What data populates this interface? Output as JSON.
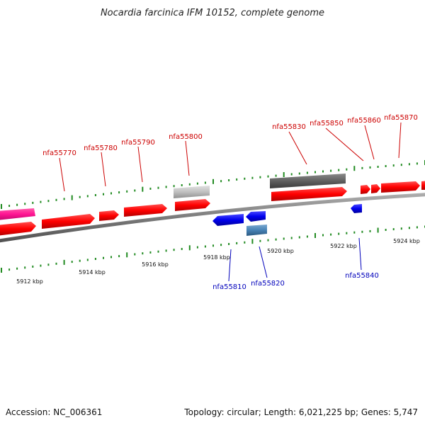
{
  "header": {
    "title": "Nocardia farcinica IFM 10152, complete genome"
  },
  "footer": {
    "accession": "Accession: NC_006361",
    "summary": "Topology: circular; Length: 6,021,225 bp; Genes: 5,747"
  },
  "scale_labels": [
    "5912 kbp",
    "5914 kbp",
    "5916 kbp",
    "5918 kbp",
    "5920 kbp",
    "5922 kbp",
    "5924 kbp"
  ],
  "gene_labels": {
    "forward": [
      "nfa55770",
      "nfa55780",
      "nfa55790",
      "nfa55800",
      "nfa55830",
      "nfa55850",
      "nfa55860",
      "nfa55870"
    ],
    "reverse": [
      "nfa55810",
      "nfa55820",
      "nfa55840"
    ]
  },
  "colors": {
    "forward_gene": "#ff0000",
    "reverse_gene": "#0000ee",
    "rna_gene": "#ff1493",
    "pseudo_gene_light": "#c0c0c0",
    "pseudo_gene_dark": "#606060",
    "steel_gene": "#4682b4",
    "tick": "#228b22",
    "backbone": "#808080"
  }
}
